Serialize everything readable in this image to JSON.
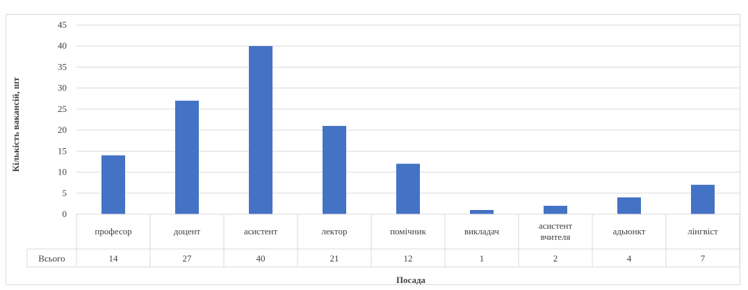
{
  "chart_data": {
    "type": "bar",
    "categories": [
      [
        "професор"
      ],
      [
        "доцент"
      ],
      [
        "асистент"
      ],
      [
        "лектор"
      ],
      [
        "помічник"
      ],
      [
        "викладач"
      ],
      [
        "асистент",
        "вчителя"
      ],
      [
        "адьюнкт"
      ],
      [
        "лінгвіст"
      ]
    ],
    "series": [
      {
        "name": "Всього",
        "values": [
          14,
          27,
          40,
          21,
          12,
          1,
          2,
          4,
          7
        ]
      }
    ],
    "xlabel": "Посада",
    "ylabel": "Кількість вакансій, шт",
    "ylim": [
      0,
      45
    ],
    "yticks": [
      0,
      5,
      10,
      15,
      20,
      25,
      30,
      35,
      40,
      45
    ],
    "grid": true,
    "data_table": true,
    "colors": {
      "bar": "#4472c4",
      "grid": "#d9d9d9",
      "text": "#404040"
    }
  }
}
